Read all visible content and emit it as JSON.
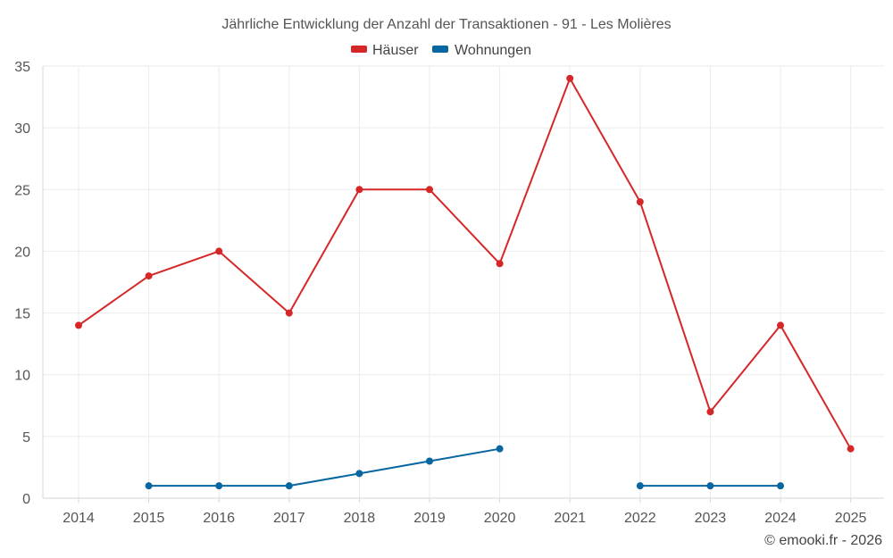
{
  "chart_data": {
    "type": "line",
    "title": "Jährliche Entwicklung der Anzahl der Transaktionen - 91 - Les Molières",
    "categories": [
      "2014",
      "2015",
      "2016",
      "2017",
      "2018",
      "2019",
      "2020",
      "2021",
      "2022",
      "2023",
      "2024",
      "2025"
    ],
    "xlabel": "",
    "ylabel": "",
    "ylim": [
      0,
      35
    ],
    "yticks": [
      "0",
      "5",
      "10",
      "15",
      "20",
      "25",
      "30",
      "35"
    ],
    "grid": true,
    "legend_position": "top-center",
    "series": [
      {
        "name": "Häuser",
        "color": "#d62728",
        "values": [
          14,
          18,
          20,
          15,
          25,
          25,
          19,
          34,
          24,
          7,
          14,
          4
        ]
      },
      {
        "name": "Wohnungen",
        "color": "#0866a0",
        "values": [
          null,
          1,
          1,
          1,
          2,
          3,
          4,
          null,
          1,
          1,
          1,
          null
        ]
      }
    ]
  },
  "credit": "© emooki.fr - 2026"
}
